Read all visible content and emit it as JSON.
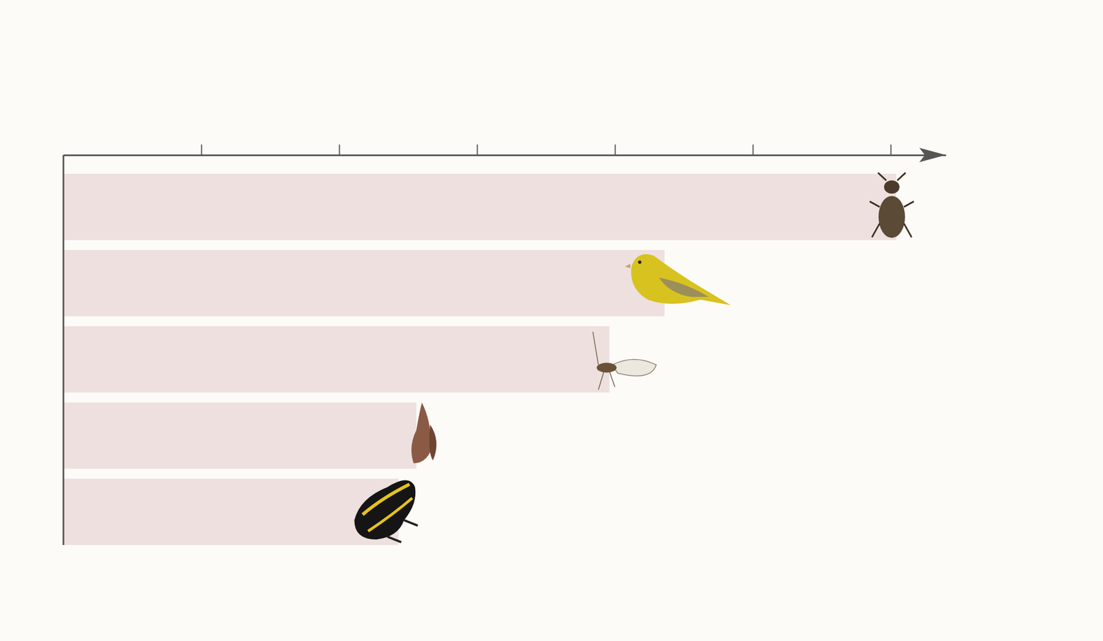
{
  "chart_data": {
    "type": "bar",
    "orientation": "horizontal",
    "categories": [
      null,
      null,
      null,
      null,
      null
    ],
    "values": [
      6.04,
      4.36,
      3.96,
      2.56,
      2.43
    ],
    "color": "#ede0de",
    "xlim": [
      0,
      6.4
    ],
    "xticks": [
      1,
      2,
      3,
      4,
      5,
      6
    ],
    "tick_labels": false,
    "grid": false
  }
}
